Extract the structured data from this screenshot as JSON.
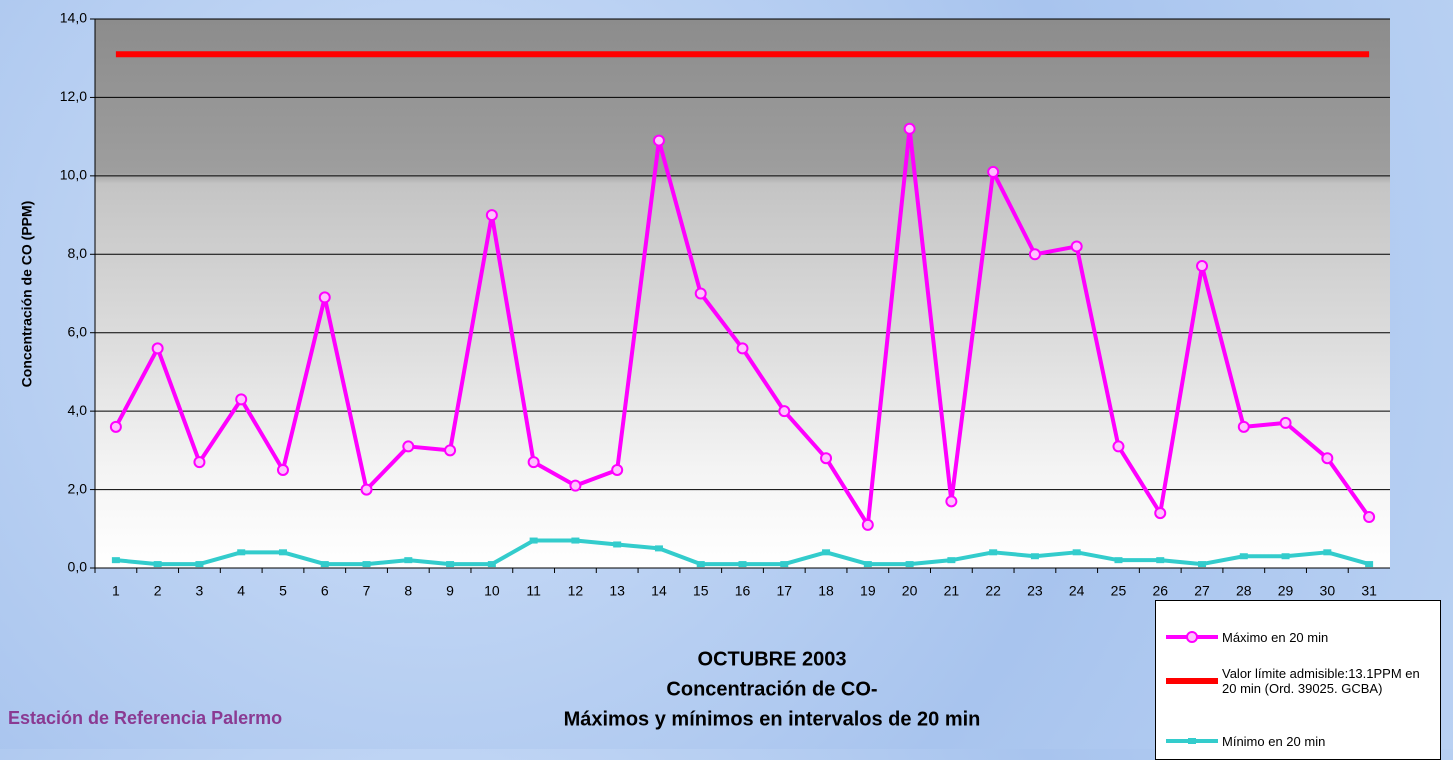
{
  "chart_data": {
    "type": "line",
    "title": [
      "OCTUBRE 2003",
      "Concentración de CO-",
      "Máximos y mínimos en intervalos de 20 min"
    ],
    "footer": "Estación de Referencia Palermo",
    "y_label": "Concentración de CO (PPM)",
    "categories": [
      "1",
      "2",
      "3",
      "4",
      "5",
      "6",
      "7",
      "8",
      "9",
      "10",
      "11",
      "12",
      "13",
      "14",
      "15",
      "16",
      "17",
      "18",
      "19",
      "20",
      "21",
      "22",
      "23",
      "24",
      "25",
      "26",
      "27",
      "28",
      "29",
      "30",
      "31"
    ],
    "series": [
      {
        "name": "Máximo en 20 min",
        "color": "#ff00ff",
        "marker": "circle",
        "values": [
          3.6,
          5.6,
          2.7,
          4.3,
          2.5,
          6.9,
          2.0,
          3.1,
          3.0,
          9.0,
          2.7,
          2.1,
          2.5,
          10.9,
          7.0,
          5.6,
          4.0,
          2.8,
          1.1,
          11.2,
          1.7,
          10.1,
          8.0,
          8.2,
          3.1,
          1.4,
          7.7,
          3.6,
          3.7,
          2.8,
          1.3
        ]
      },
      {
        "name": "Valor límite admisible:13.1PPM en 20 min (Ord. 39025. GCBA)",
        "color": "#ff0000",
        "marker": "none",
        "values": [
          13.1,
          13.1,
          13.1,
          13.1,
          13.1,
          13.1,
          13.1,
          13.1,
          13.1,
          13.1,
          13.1,
          13.1,
          13.1,
          13.1,
          13.1,
          13.1,
          13.1,
          13.1,
          13.1,
          13.1,
          13.1,
          13.1,
          13.1,
          13.1,
          13.1,
          13.1,
          13.1,
          13.1,
          13.1,
          13.1,
          13.1
        ]
      },
      {
        "name": "Mínimo en 20 min",
        "color": "#33cccc",
        "marker": "square",
        "values": [
          0.2,
          0.1,
          0.1,
          0.4,
          0.4,
          0.1,
          0.1,
          0.2,
          0.1,
          0.1,
          0.7,
          0.7,
          0.6,
          0.5,
          0.1,
          0.1,
          0.1,
          0.4,
          0.1,
          0.1,
          0.2,
          0.4,
          0.3,
          0.4,
          0.2,
          0.2,
          0.1,
          0.3,
          0.3,
          0.4,
          0.1
        ]
      }
    ],
    "ylim": [
      0,
      14
    ],
    "yticks": [
      {
        "value": 0,
        "label": "0,0"
      },
      {
        "value": 2,
        "label": "2,0"
      },
      {
        "value": 4,
        "label": "4,0"
      },
      {
        "value": 6,
        "label": "6,0"
      },
      {
        "value": 8,
        "label": "8,0"
      },
      {
        "value": 10,
        "label": "10,0"
      },
      {
        "value": 12,
        "label": "12,0"
      },
      {
        "value": 14,
        "label": "14,0"
      }
    ],
    "grid": true
  }
}
